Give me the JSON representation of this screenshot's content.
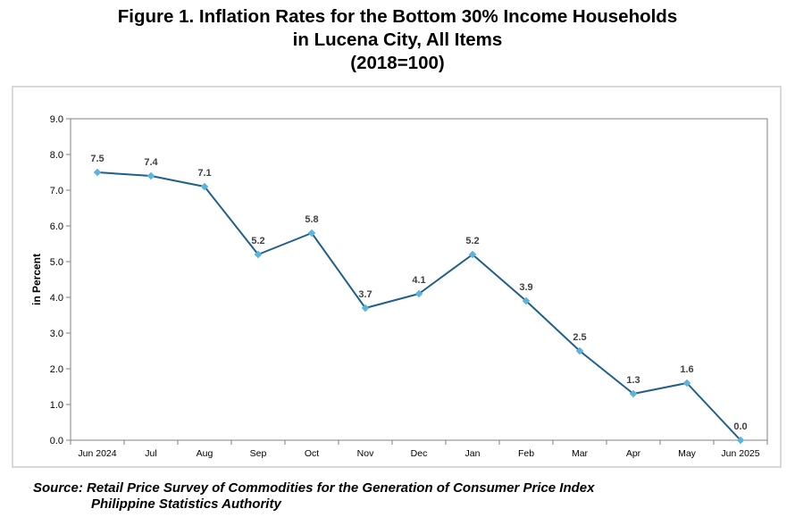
{
  "title": {
    "line1": "Figure 1. Inflation Rates for the Bottom 30% Income Households",
    "line2": "in Lucena City, All Items",
    "line3": "(2018=100)"
  },
  "source": {
    "line1": "Source: Retail Price Survey of Commodities for the Generation of Consumer Price Index",
    "line2": "Philippine Statistics Authority"
  },
  "chart_data": {
    "type": "line",
    "title": "Figure 1. Inflation Rates for the Bottom 30% Income Households in Lucena City, All Items (2018=100)",
    "xlabel": "",
    "ylabel": "in Percent",
    "categories": [
      "Jun 2024",
      "Jul",
      "Aug",
      "Sep",
      "Oct",
      "Nov",
      "Dec",
      "Jan",
      "Feb",
      "Mar",
      "Apr",
      "May",
      "Jun 2025"
    ],
    "series": [
      {
        "values": [
          7.5,
          7.4,
          7.1,
          5.2,
          5.8,
          3.7,
          4.1,
          5.2,
          3.9,
          2.5,
          1.3,
          1.6,
          0.0
        ]
      }
    ],
    "data_labels": [
      "7.5",
      "7.4",
      "7.1",
      "5.2",
      "5.8",
      "3.7",
      "4.1",
      "5.2",
      "3.9",
      "2.5",
      "1.3",
      "1.6",
      "0.0"
    ],
    "yticks": [
      "0.0",
      "1.0",
      "2.0",
      "3.0",
      "4.0",
      "5.0",
      "6.0",
      "7.0",
      "8.0",
      "9.0"
    ],
    "ylim": [
      0,
      9
    ],
    "grid": false,
    "legend": "none",
    "colors": {
      "line": "#1f5f8b",
      "marker": "#5bb3e0",
      "axis": "#808080",
      "frame": "#d9d9d9"
    }
  }
}
